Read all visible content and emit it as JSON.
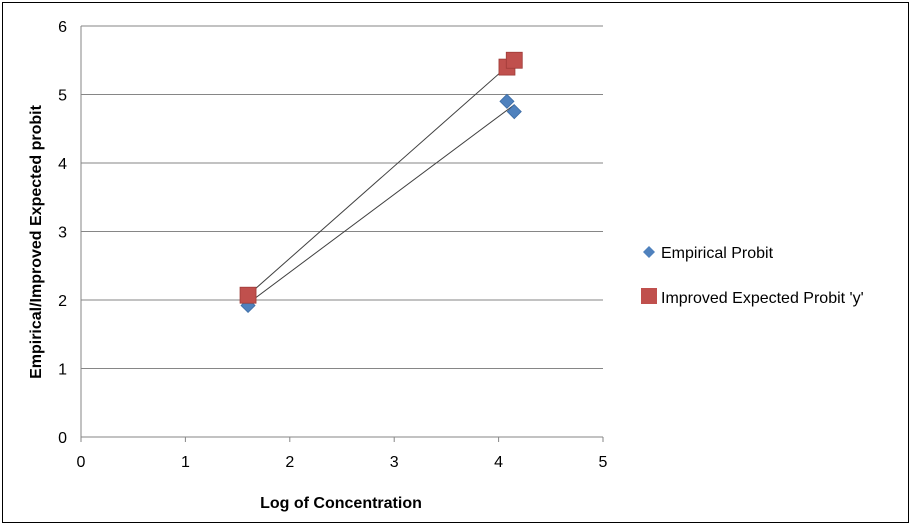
{
  "chart_data": {
    "type": "scatter",
    "xlabel": "Log of Concentration",
    "ylabel": "Empirical/Improved Expected probit",
    "xlim": [
      0,
      5
    ],
    "ylim": [
      0,
      6
    ],
    "x_ticks": [
      "0",
      "1",
      "2",
      "3",
      "4",
      "5"
    ],
    "y_ticks": [
      "0",
      "1",
      "2",
      "3",
      "4",
      "5",
      "6"
    ],
    "grid": "horizontal major gridlines",
    "legend_position": "right",
    "series": [
      {
        "name": "Empirical Probit",
        "marker": "diamond",
        "color": "#4F81BD",
        "x": [
          1.6,
          4.08,
          4.15
        ],
        "y": [
          1.92,
          4.9,
          4.75
        ],
        "trendline": {
          "from": [
            1.6,
            1.95
          ],
          "to": [
            4.15,
            4.85
          ]
        }
      },
      {
        "name": "Improved Expected Probit 'y'",
        "marker": "square",
        "color": "#C0504D",
        "x": [
          1.6,
          4.08,
          4.15
        ],
        "y": [
          2.07,
          5.4,
          5.5
        ],
        "trendline": {
          "from": [
            1.6,
            2.07
          ],
          "to": [
            4.15,
            5.5
          ]
        }
      }
    ]
  }
}
